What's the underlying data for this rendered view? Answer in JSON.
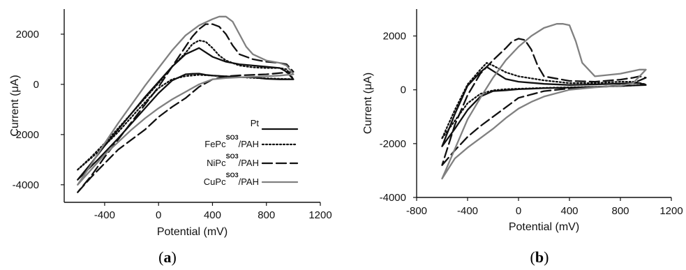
{
  "chart_data": [
    {
      "type": "line",
      "panel": {
        "open": "(",
        "letter": "a",
        "close": ")"
      },
      "xlabel": "Potential (mV)",
      "ylabel": "Current (μA)",
      "xlim": [
        -700,
        1200
      ],
      "ylim": [
        -4700,
        3000
      ],
      "xticks": [
        -400,
        0,
        400,
        800,
        1200
      ],
      "yticks": [
        -4000,
        -2000,
        0,
        2000
      ],
      "legend_position": "bottom-right",
      "series": [
        {
          "name_main": "Pt",
          "name_sup": "",
          "name_tail": "",
          "style": "solid",
          "color": "#111111",
          "x": [
            -600,
            -450,
            -300,
            -150,
            0,
            100,
            200,
            250,
            300,
            350,
            400,
            500,
            600,
            700,
            800,
            900,
            1000,
            950,
            900,
            800,
            700,
            600,
            500,
            400,
            300,
            200,
            100,
            0,
            -100,
            -200,
            -300,
            -400,
            -500,
            -600
          ],
          "y": [
            -3800,
            -3000,
            -2150,
            -1250,
            -350,
            150,
            400,
            420,
            430,
            380,
            350,
            320,
            290,
            280,
            220,
            200,
            200,
            500,
            650,
            700,
            750,
            800,
            900,
            1100,
            1450,
            1200,
            700,
            100,
            -500,
            -1150,
            -1800,
            -2450,
            -3150,
            -3800
          ]
        },
        {
          "name_main": "FePc",
          "name_sup": "SO3",
          "name_tail": "/PAH",
          "style": "dotted",
          "color": "#111111",
          "x": [
            -600,
            -450,
            -300,
            -150,
            0,
            100,
            200,
            300,
            400,
            500,
            600,
            700,
            800,
            900,
            1000,
            950,
            900,
            800,
            700,
            600,
            500,
            450,
            400,
            350,
            300,
            250,
            200,
            100,
            0,
            -100,
            -200,
            -300,
            -400,
            -500,
            -600
          ],
          "y": [
            -3400,
            -2700,
            -1900,
            -1000,
            -150,
            200,
            330,
            380,
            350,
            310,
            290,
            260,
            240,
            220,
            210,
            600,
            650,
            650,
            680,
            750,
            950,
            1150,
            1450,
            1700,
            1750,
            1600,
            1250,
            700,
            50,
            -550,
            -1150,
            -1750,
            -2350,
            -2900,
            -3400
          ]
        },
        {
          "name_main": "NiPc",
          "name_sup": "SO3",
          "name_tail": "/PAH",
          "style": "dashed",
          "color": "#111111",
          "x": [
            -600,
            -500,
            -400,
            -300,
            -200,
            -100,
            0,
            100,
            200,
            300,
            400,
            500,
            600,
            700,
            800,
            900,
            1000,
            950,
            900,
            800,
            700,
            600,
            550,
            500,
            450,
            400,
            350,
            300,
            250,
            200,
            100,
            0,
            -100,
            -200,
            -300,
            -400,
            -500,
            -600
          ],
          "y": [
            -4300,
            -3700,
            -3150,
            -2600,
            -2200,
            -1800,
            -1300,
            -900,
            -550,
            -100,
            200,
            320,
            360,
            380,
            400,
            450,
            500,
            800,
            850,
            900,
            1000,
            1200,
            1550,
            2000,
            2300,
            2400,
            2400,
            2200,
            1900,
            1500,
            700,
            -100,
            -800,
            -1500,
            -2200,
            -2900,
            -3650,
            -4300
          ]
        },
        {
          "name_main": "CuPc",
          "name_sup": "SO3",
          "name_tail": "/PAH",
          "style": "solid",
          "color": "#808080",
          "x": [
            -600,
            -500,
            -400,
            -300,
            -200,
            -100,
            0,
            100,
            200,
            300,
            400,
            500,
            600,
            700,
            800,
            900,
            1000,
            950,
            900,
            800,
            700,
            650,
            600,
            550,
            500,
            450,
            400,
            300,
            200,
            100,
            0,
            -100,
            -200,
            -300,
            -400,
            -500,
            -600
          ],
          "y": [
            -4000,
            -3400,
            -2800,
            -2300,
            -1800,
            -1350,
            -950,
            -600,
            -300,
            0,
            200,
            250,
            280,
            300,
            320,
            350,
            400,
            750,
            850,
            950,
            1200,
            1500,
            2000,
            2500,
            2700,
            2700,
            2600,
            2350,
            1950,
            1350,
            650,
            -50,
            -800,
            -1550,
            -2350,
            -3200,
            -4000
          ]
        }
      ]
    },
    {
      "type": "line",
      "panel": {
        "open": "(",
        "letter": "b",
        "close": ")"
      },
      "xlabel": "Potential (mV)",
      "ylabel": "Current (μA)",
      "xlim": [
        -800,
        1200
      ],
      "ylim": [
        -4000,
        3000
      ],
      "xticks": [
        -800,
        -400,
        0,
        400,
        800,
        1200
      ],
      "yticks": [
        -4000,
        -2000,
        0,
        2000
      ],
      "series": [
        {
          "style": "solid",
          "color": "#111111",
          "x": [
            -600,
            -500,
            -400,
            -300,
            -200,
            -100,
            0,
            200,
            400,
            600,
            800,
            900,
            1000,
            950,
            900,
            800,
            600,
            400,
            200,
            0,
            -100,
            -150,
            -200,
            -250,
            -300,
            -400,
            -500,
            -600
          ],
          "y": [
            -2100,
            -1450,
            -750,
            -250,
            -50,
            -20,
            20,
            60,
            80,
            110,
            140,
            160,
            180,
            250,
            250,
            230,
            200,
            180,
            220,
            300,
            400,
            550,
            700,
            850,
            650,
            150,
            -900,
            -2100
          ]
        },
        {
          "style": "dotted",
          "color": "#111111",
          "x": [
            -600,
            -500,
            -400,
            -300,
            -200,
            -100,
            0,
            200,
            400,
            600,
            800,
            900,
            1000,
            950,
            900,
            800,
            600,
            400,
            200,
            0,
            -100,
            -200,
            -250,
            -300,
            -400,
            -500,
            -600
          ],
          "y": [
            -1800,
            -1150,
            -500,
            -150,
            -20,
            20,
            40,
            70,
            90,
            110,
            140,
            160,
            200,
            250,
            300,
            300,
            250,
            250,
            350,
            500,
            650,
            900,
            1000,
            750,
            200,
            -750,
            -1800
          ]
        },
        {
          "style": "dashed",
          "color": "#111111",
          "x": [
            -600,
            -500,
            -400,
            -300,
            -200,
            -100,
            0,
            200,
            400,
            600,
            800,
            900,
            1000,
            950,
            900,
            800,
            600,
            400,
            200,
            150,
            100,
            50,
            0,
            -50,
            -100,
            -200,
            -300,
            -400,
            -500,
            -600
          ],
          "y": [
            -2800,
            -2250,
            -1750,
            -1350,
            -1000,
            -650,
            -300,
            -50,
            50,
            100,
            160,
            250,
            450,
            500,
            450,
            380,
            300,
            330,
            500,
            900,
            1500,
            1850,
            1900,
            1800,
            1550,
            1100,
            600,
            -200,
            -1300,
            -2800
          ]
        },
        {
          "style": "solid",
          "color": "#808080",
          "x": [
            -600,
            -500,
            -400,
            -300,
            -200,
            -100,
            0,
            100,
            200,
            400,
            600,
            800,
            900,
            1000,
            950,
            900,
            800,
            600,
            500,
            450,
            400,
            350,
            300,
            200,
            100,
            0,
            -100,
            -200,
            -300,
            -400,
            -500,
            -600
          ],
          "y": [
            -3300,
            -2550,
            -2150,
            -1800,
            -1450,
            -1050,
            -700,
            -450,
            -250,
            0,
            90,
            150,
            250,
            750,
            750,
            700,
            600,
            500,
            1000,
            1800,
            2400,
            2450,
            2450,
            2300,
            2000,
            1600,
            1100,
            450,
            -300,
            -1100,
            -2200,
            -3300
          ]
        }
      ]
    }
  ]
}
